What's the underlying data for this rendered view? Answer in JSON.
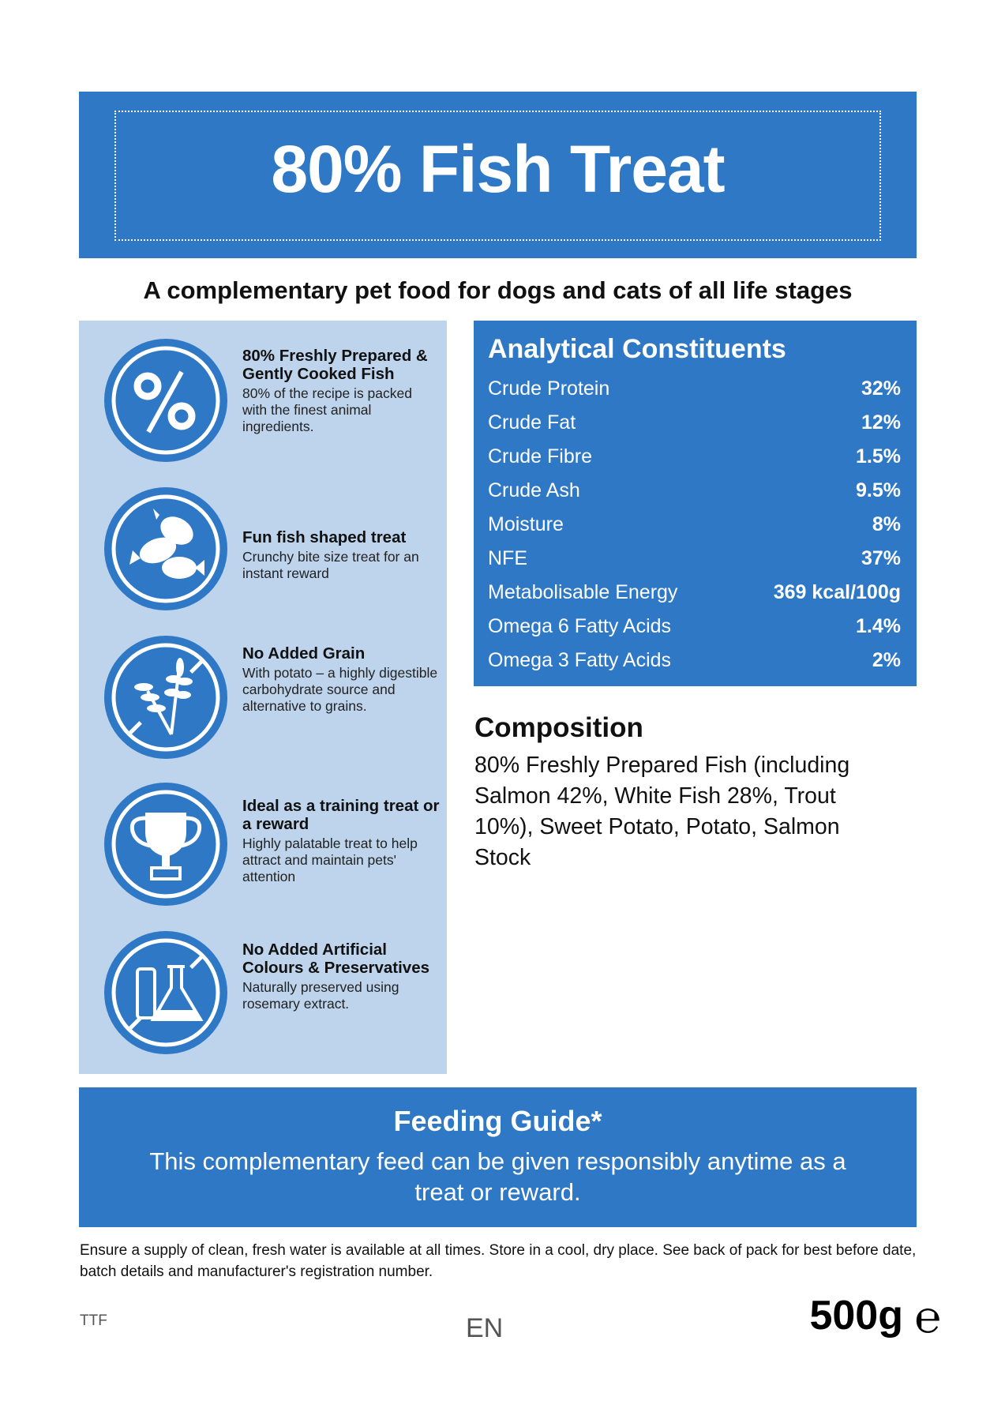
{
  "colors": {
    "brand_blue": "#2e78c6",
    "panel_light_blue": "#bdd4ec"
  },
  "header": {
    "title": "80% Fish Treat",
    "subtitle": "A complementary pet food for dogs and cats of all life stages"
  },
  "features": [
    {
      "icon": "percent-icon",
      "title": "80% Freshly Prepared & Gently Cooked Fish",
      "body": "80% of the recipe is packed with the finest animal ingredients."
    },
    {
      "icon": "fish-treats-icon",
      "title": "Fun fish shaped treat",
      "body": "Crunchy bite size treat for an instant reward"
    },
    {
      "icon": "no-grain-icon",
      "title": "No Added Grain",
      "body": "With potato – a highly digestible carbohydrate source and alternative to grains."
    },
    {
      "icon": "trophy-icon",
      "title": "Ideal as a training treat or a reward",
      "body": "Highly palatable treat to help attract and maintain pets' attention"
    },
    {
      "icon": "no-chemicals-icon",
      "title": "No Added Artificial Colours & Preservatives",
      "body": "Naturally preserved using rosemary extract."
    }
  ],
  "analytical": {
    "title": "Analytical Constituents",
    "rows": [
      {
        "label": "Crude Protein",
        "value": "32%"
      },
      {
        "label": "Crude Fat",
        "value": "12%"
      },
      {
        "label": "Crude Fibre",
        "value": "1.5%"
      },
      {
        "label": "Crude Ash",
        "value": "9.5%"
      },
      {
        "label": "Moisture",
        "value": "8%"
      },
      {
        "label": "NFE",
        "value": "37%"
      },
      {
        "label": "Metabolisable Energy",
        "value": "369 kcal/100g"
      },
      {
        "label": "Omega 6 Fatty Acids",
        "value": "1.4%"
      },
      {
        "label": "Omega 3 Fatty Acids",
        "value": "2%"
      }
    ]
  },
  "composition": {
    "title": "Composition",
    "body": "80% Freshly Prepared Fish (including Salmon 42%, White Fish 28%, Trout 10%), Sweet Potato, Potato, Salmon Stock"
  },
  "feeding": {
    "title": "Feeding Guide*",
    "body": "This complementary feed can be given responsibly anytime as a treat or reward."
  },
  "footer": {
    "note": "Ensure a supply of clean, fresh water is available at all times. Store in a cool, dry place. See back of pack for best before date, batch details and manufacturer's registration number.",
    "code": "TTF",
    "language": "EN",
    "weight": "500g",
    "estimated_sign": "℮"
  }
}
